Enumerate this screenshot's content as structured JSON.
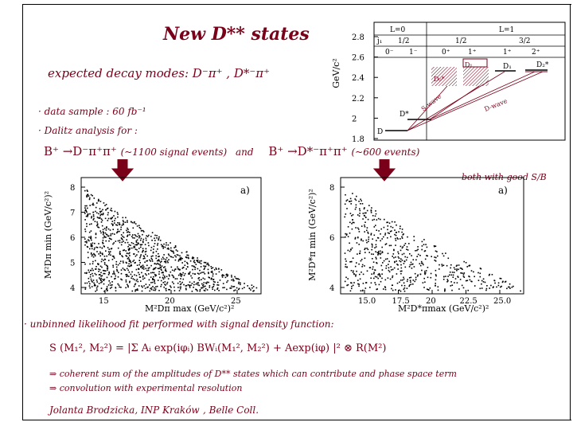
{
  "title": "New D** states",
  "decay_modes": "expected decay modes: D⁻π⁺ , D*⁻π⁺",
  "bullets": [
    "· data sample : 60 fb⁻¹",
    "· Dalitz analysis for :"
  ],
  "channel_left": "B⁺ →D⁻π⁺π⁺",
  "channel_left_events": "(~1100 signal events)",
  "channel_and": "and",
  "channel_right": "B⁺ →D*⁻π⁺π⁺",
  "channel_right_events": "(~600 events)",
  "both_note": "both with good S/B",
  "likelihood_line": "· unbinned likelihood fit performed with signal density function:",
  "formula": "S (M₁², M₂²) = |Σ Aᵢ exp(iφᵢ) BWᵢ(M₁², M₂²) + Aexp(iφ) |² ⊗ R(M²)",
  "implication_1": "⇒ coherent sum of the amplitudes of D** states which can contribute and phase space term",
  "implication_2": "⇒ convolution with experimental resolution",
  "footer_author": "Jolanta Brodzicka, INP Kraków",
  "footer_coll": ", Belle Coll.",
  "level_plot": {
    "ylabel": "GeV/c²",
    "yticks": [
      "2.8",
      "2.6",
      "2.4",
      "2.2",
      "2",
      "1.8"
    ],
    "row_l": [
      "L=0",
      "L=1"
    ],
    "row_j": [
      "j₁",
      "1/2",
      "1/2",
      "3/2"
    ],
    "row_jp": [
      "0⁻",
      "1⁻",
      "0⁺",
      "1⁺",
      "1⁺",
      "2⁺"
    ],
    "state_labels": [
      "D",
      "D*",
      "D₀*",
      "D₁",
      "D₁",
      "D₂*"
    ],
    "wave_labels": [
      "S-wave",
      "D-wave"
    ]
  },
  "dalitz_left": {
    "panel_label": "a)",
    "ylabel": "M²Dπ min (GeV/c²)²",
    "xlabel": "M²Dπ max (GeV/c²)²",
    "yticks": [
      "8",
      "7",
      "6",
      "5",
      "4"
    ],
    "xticks": [
      "15",
      "20",
      "25"
    ]
  },
  "dalitz_right": {
    "panel_label": "a)",
    "ylabel": "M²D*π min (GeV/c²)²",
    "xlabel": "M²D*πmax (GeV/c²)²",
    "yticks": [
      "8",
      "6",
      "4"
    ],
    "xticks": [
      "15.0",
      "17.5",
      "20",
      "22.5",
      "25.0"
    ]
  },
  "colors": {
    "accent": "#7a0019",
    "arrow": "#7a0019",
    "ink": "#000000"
  }
}
